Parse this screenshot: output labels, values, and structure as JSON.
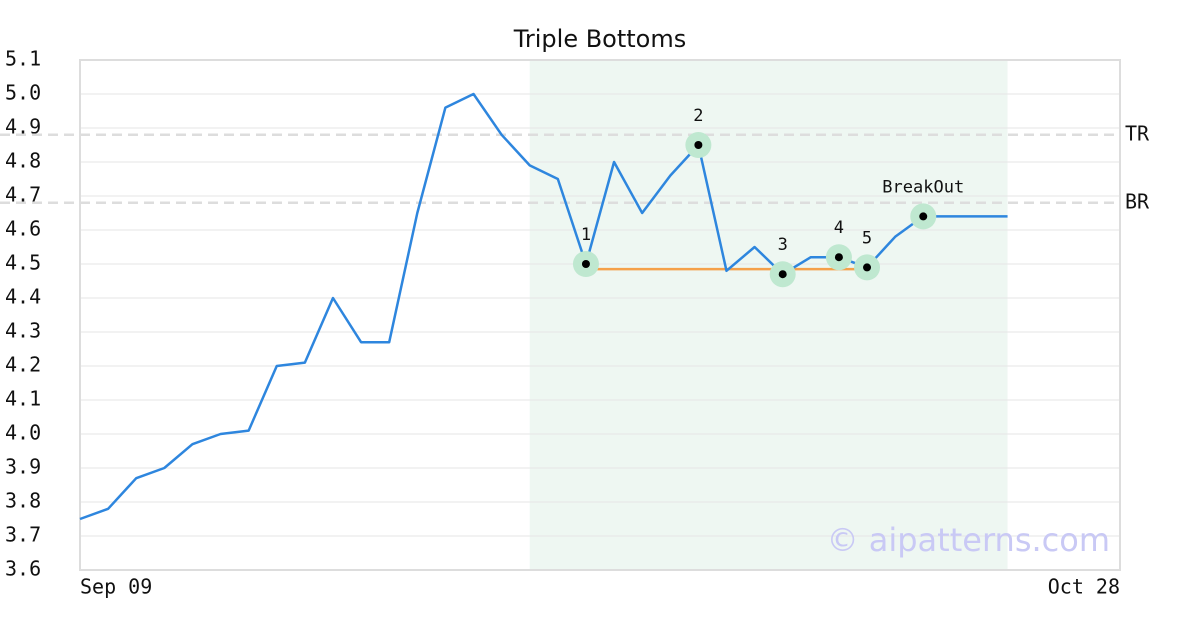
{
  "chart_data": {
    "type": "line",
    "title": "Triple Bottoms",
    "x": [
      0,
      1,
      2,
      3,
      4,
      5,
      6,
      7,
      8,
      9,
      10,
      11,
      12,
      13,
      14,
      15,
      16,
      17,
      18,
      19,
      20,
      21,
      22,
      23,
      24,
      25,
      26,
      27,
      28,
      29,
      30,
      31,
      32,
      33
    ],
    "values": [
      3.75,
      3.78,
      3.87,
      3.9,
      3.97,
      4.0,
      4.01,
      4.2,
      4.21,
      4.4,
      4.27,
      4.27,
      4.65,
      4.96,
      5.0,
      4.88,
      4.79,
      4.75,
      4.5,
      4.8,
      4.65,
      4.76,
      4.85,
      4.48,
      4.55,
      4.47,
      4.52,
      4.52,
      4.49,
      4.58,
      4.64,
      4.64,
      4.64,
      4.64
    ],
    "color": "#2e86de",
    "xlim": [
      0,
      37
    ],
    "xticks": [
      {
        "value": 0,
        "label": "Sep 09"
      },
      {
        "value": 37,
        "label": "Oct 28"
      }
    ],
    "ylim": [
      3.6,
      5.1
    ],
    "yticks": [
      3.6,
      3.7,
      3.8,
      3.9,
      {
        "value": 4.0,
        "label": "4.0"
      },
      4.1,
      4.2,
      4.3,
      4.4,
      4.5,
      4.6,
      4.7,
      4.8,
      4.9,
      {
        "value": 5.0,
        "label": "5.0"
      },
      5.1
    ],
    "grid": true,
    "region": {
      "x": [
        16,
        33
      ],
      "color": "#eef7f2"
    },
    "levels": [
      {
        "label": "TR",
        "value": 4.88
      },
      {
        "label": "BR",
        "value": 4.68
      }
    ],
    "support": {
      "x": [
        18,
        28
      ],
      "value": 4.485,
      "color": "#f5a04a"
    },
    "points": [
      {
        "label": "1",
        "x": 18,
        "y": 4.5
      },
      {
        "label": "2",
        "x": 22,
        "y": 4.85
      },
      {
        "label": "3",
        "x": 25,
        "y": 4.47
      },
      {
        "label": "4",
        "x": 27,
        "y": 4.52
      },
      {
        "label": "5",
        "x": 28,
        "y": 4.49
      },
      {
        "label": "BreakOut",
        "x": 30,
        "y": 4.64
      }
    ],
    "watermark": "© aipatterns.com"
  }
}
